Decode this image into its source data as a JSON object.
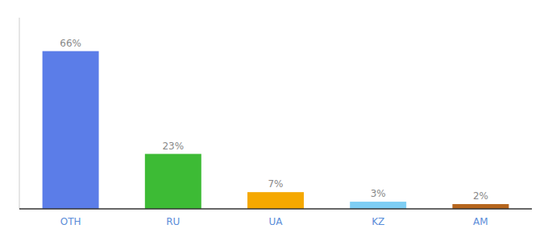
{
  "chart_data": {
    "type": "bar",
    "categories": [
      "OTH",
      "RU",
      "UA",
      "KZ",
      "AM"
    ],
    "values": [
      66,
      23,
      7,
      3,
      2
    ],
    "value_labels": [
      "66%",
      "23%",
      "7%",
      "3%",
      "2%"
    ],
    "data_labels": true,
    "colors": [
      "#5b7de8",
      "#3dbb35",
      "#f5a800",
      "#7ecef4",
      "#b5651d"
    ],
    "ylim": [
      0,
      80
    ],
    "yticks": [],
    "tick_labels": "x",
    "grid": false
  }
}
